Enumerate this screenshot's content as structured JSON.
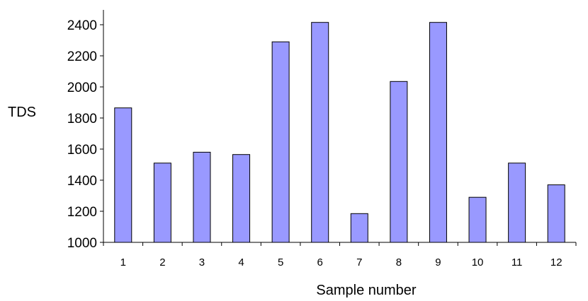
{
  "chart_data": {
    "type": "bar",
    "title": "",
    "xlabel": "Sample number",
    "ylabel": "TDS",
    "categories": [
      "1",
      "2",
      "3",
      "4",
      "5",
      "6",
      "7",
      "8",
      "9",
      "10",
      "11",
      "12"
    ],
    "values": [
      1865,
      1510,
      1580,
      1565,
      2290,
      2415,
      1185,
      2035,
      2415,
      1290,
      1510,
      1370
    ],
    "ylim": [
      1000,
      2400
    ],
    "yticks": [
      "1000",
      "1200",
      "1400",
      "1600",
      "1800",
      "2000",
      "2200",
      "2400"
    ],
    "grid": false,
    "legend": "none",
    "colors": {
      "bar_fill": "#9999ff",
      "bar_stroke": "#000000",
      "axis": "#000000"
    }
  }
}
